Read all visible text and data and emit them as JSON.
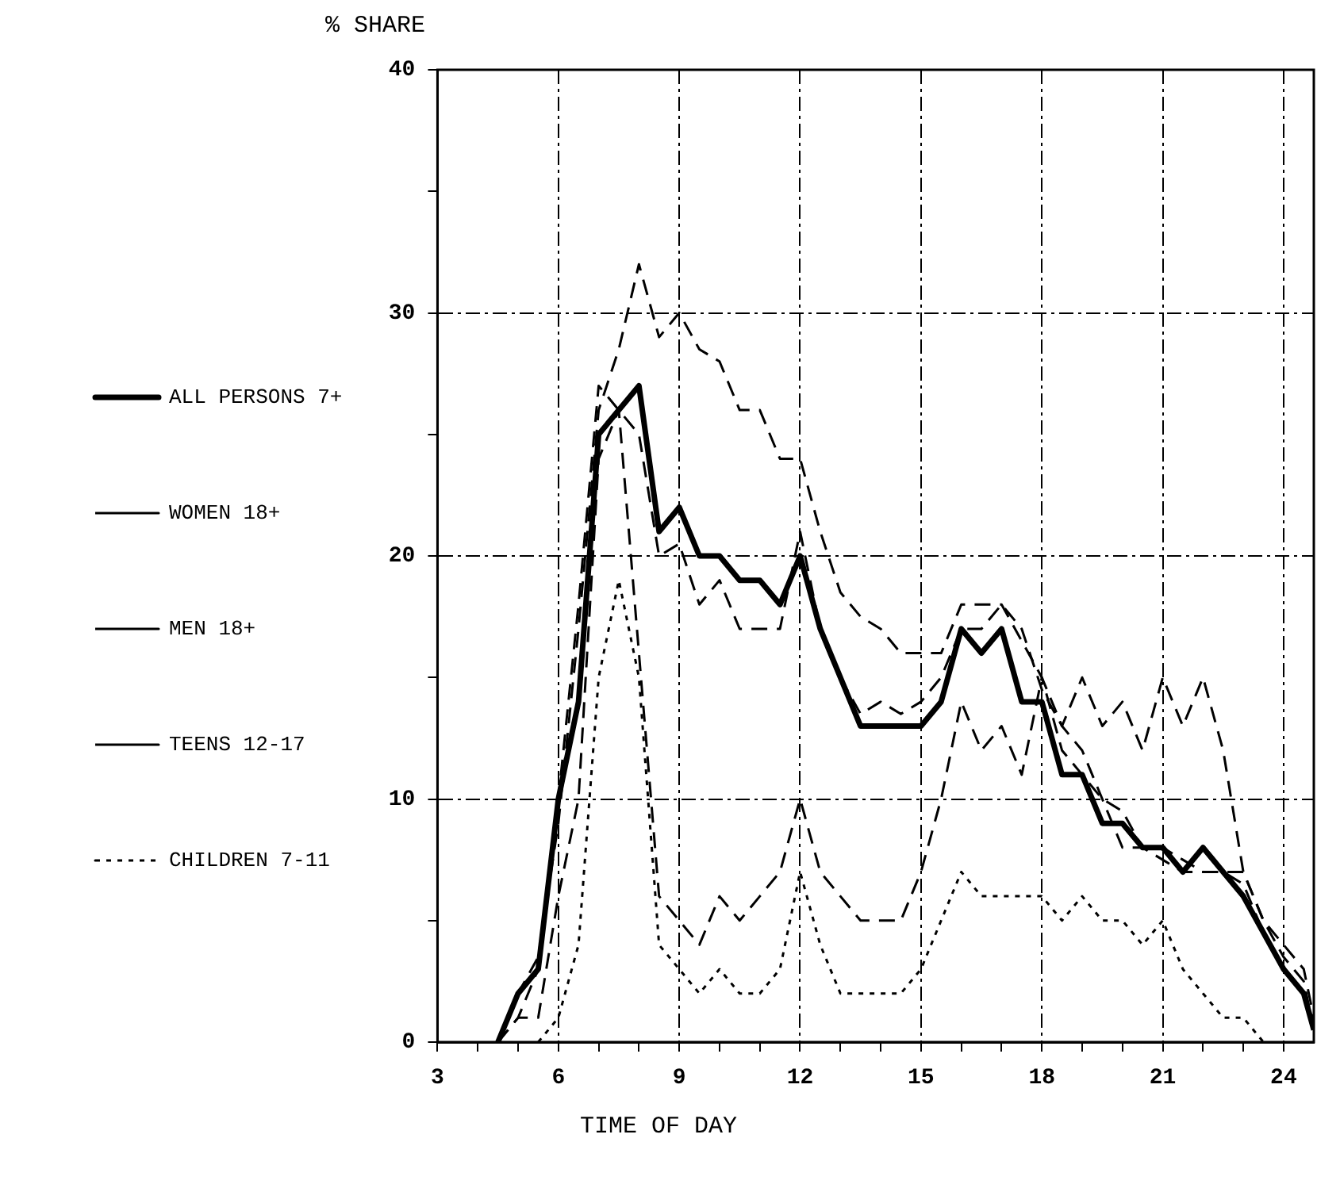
{
  "chart_data": {
    "type": "line",
    "ylabel": "% SHARE",
    "xlabel": "TIME OF DAY",
    "xlim": [
      3,
      24.75
    ],
    "ylim": [
      0,
      40
    ],
    "xticks": [
      3,
      {
        "value": 4,
        "label": null
      },
      {
        "value": 5,
        "label": null
      },
      6,
      {
        "value": 7,
        "label": null
      },
      {
        "value": 8,
        "label": null
      },
      9,
      {
        "value": 10,
        "label": null
      },
      {
        "value": 11,
        "label": null
      },
      12,
      {
        "value": 13,
        "label": null
      },
      {
        "value": 14,
        "label": null
      },
      15,
      {
        "value": 16,
        "label": null
      },
      {
        "value": 17,
        "label": null
      },
      18,
      {
        "value": 19,
        "label": null
      },
      {
        "value": 20,
        "label": null
      },
      21,
      {
        "value": 22,
        "label": null
      },
      {
        "value": 23,
        "label": null
      },
      24
    ],
    "yticks": [
      0,
      {
        "value": 5,
        "label": null
      },
      10,
      {
        "value": 15,
        "label": null
      },
      20,
      {
        "value": 25,
        "label": null
      },
      30,
      {
        "value": 35,
        "label": null
      },
      40
    ],
    "grid": true,
    "legend": "left",
    "marker": "none",
    "series": [
      {
        "name": "ALL PERSONS 7+",
        "color": "#000000",
        "line_style": "solid",
        "x": [
          4.5,
          5,
          5.5,
          6,
          6.5,
          7,
          7.5,
          8,
          8.5,
          9,
          9.5,
          10,
          10.5,
          11,
          11.5,
          12,
          12.5,
          13,
          13.5,
          14,
          14.5,
          15,
          15.5,
          16,
          16.5,
          17,
          17.5,
          18,
          18.5,
          19,
          19.5,
          20,
          20.5,
          21,
          21.5,
          22,
          22.5,
          23,
          23.5,
          24,
          24.5,
          24.75
        ],
        "values": [
          0,
          2,
          3,
          10,
          14,
          25,
          26,
          27,
          21,
          22,
          20,
          20,
          19,
          19,
          18,
          20,
          17,
          15,
          13,
          13,
          13,
          13,
          14,
          17,
          16,
          17,
          14,
          14,
          11,
          11,
          9,
          9,
          8,
          8,
          7,
          8,
          7,
          6,
          4.5,
          3,
          2,
          0.5
        ]
      },
      {
        "name": "WOMEN 18+",
        "color": "#000000",
        "line_style": "dashed",
        "x": [
          4.5,
          5,
          5.5,
          6,
          6.5,
          7,
          7.5,
          8,
          8.5,
          9,
          9.5,
          10,
          10.5,
          11,
          11.5,
          12,
          12.5,
          13,
          13.5,
          14,
          14.5,
          15,
          15.5,
          16,
          16.5,
          17,
          17.5,
          18,
          18.5,
          19,
          19.5,
          20,
          20.5,
          21,
          21.5,
          22,
          22.5,
          23,
          23.5,
          24,
          24.5,
          24.75
        ],
        "values": [
          0,
          2,
          3.5,
          9,
          17,
          26,
          28.5,
          32,
          29,
          30,
          28.5,
          28,
          26,
          26,
          24,
          24,
          21,
          18.5,
          17.5,
          17,
          16,
          16,
          16,
          18,
          18,
          18,
          16.5,
          15,
          12,
          11,
          10,
          9.5,
          8,
          8,
          7.5,
          7,
          7,
          6.5,
          4.5,
          3,
          2,
          0.5
        ]
      },
      {
        "name": "MEN 18+",
        "color": "#000000",
        "line_style": "dashed",
        "x": [
          4.5,
          5,
          5.5,
          6,
          6.5,
          7,
          7.5,
          8,
          8.5,
          9,
          9.5,
          10,
          10.5,
          11,
          11.5,
          12,
          12.5,
          13,
          13.5,
          14,
          14.5,
          15,
          15.5,
          16,
          16.5,
          17,
          17.5,
          18,
          18.5,
          19,
          19.5,
          20,
          20.5,
          21,
          21.5,
          22,
          22.5,
          23,
          23.5,
          24,
          24.5,
          24.75
        ],
        "values": [
          0,
          1,
          3,
          10,
          18,
          27,
          26,
          25,
          20,
          20.5,
          18,
          19,
          17,
          17,
          17,
          21,
          17,
          15,
          13.5,
          14,
          13.5,
          14,
          15,
          17,
          17,
          18,
          17,
          14.5,
          13,
          12,
          10,
          8,
          8,
          7.5,
          7,
          7,
          7,
          7,
          5,
          3.5,
          2.5,
          0.5
        ]
      },
      {
        "name": "TEENS 12-17",
        "color": "#000000",
        "line_style": "dashed",
        "x": [
          4.5,
          5,
          5.5,
          6,
          6.5,
          7,
          7.5,
          8,
          8.5,
          9,
          9.5,
          10,
          10.5,
          11,
          11.5,
          12,
          12.5,
          13,
          13.5,
          14,
          14.5,
          15,
          15.5,
          16,
          16.5,
          17,
          17.5,
          18,
          18.5,
          19,
          19.5,
          20,
          20.5,
          21,
          21.5,
          22,
          22.5,
          23,
          23.5,
          24,
          24.5,
          24.75
        ],
        "values": [
          0,
          1,
          1,
          6,
          10,
          24,
          26,
          16,
          6,
          5,
          4,
          6,
          5,
          6,
          7,
          10,
          7,
          6,
          5,
          5,
          5,
          7,
          10,
          14,
          12,
          13,
          11,
          15,
          13,
          15,
          13,
          14,
          12,
          15,
          13,
          15,
          12,
          7,
          5,
          4,
          3,
          1
        ]
      },
      {
        "name": "CHILDREN 7-11",
        "color": "#000000",
        "line_style": "dotted",
        "x": [
          5.5,
          6,
          6.5,
          7,
          7.5,
          8,
          8.5,
          9,
          9.5,
          10,
          10.5,
          11,
          11.5,
          12,
          12.5,
          13,
          13.5,
          14,
          14.5,
          15,
          15.5,
          16,
          16.5,
          17,
          17.5,
          18,
          18.5,
          19,
          19.5,
          20,
          20.5,
          21,
          21.5,
          22,
          22.5,
          23,
          23.5
        ],
        "values": [
          0,
          1,
          4,
          15,
          19,
          15,
          4,
          3,
          2,
          3,
          2,
          2,
          3,
          7,
          4,
          2,
          2,
          2,
          2,
          3,
          5,
          7,
          6,
          6,
          6,
          6,
          5,
          6,
          5,
          5,
          4,
          5,
          3,
          2,
          1,
          1,
          0
        ]
      }
    ]
  }
}
